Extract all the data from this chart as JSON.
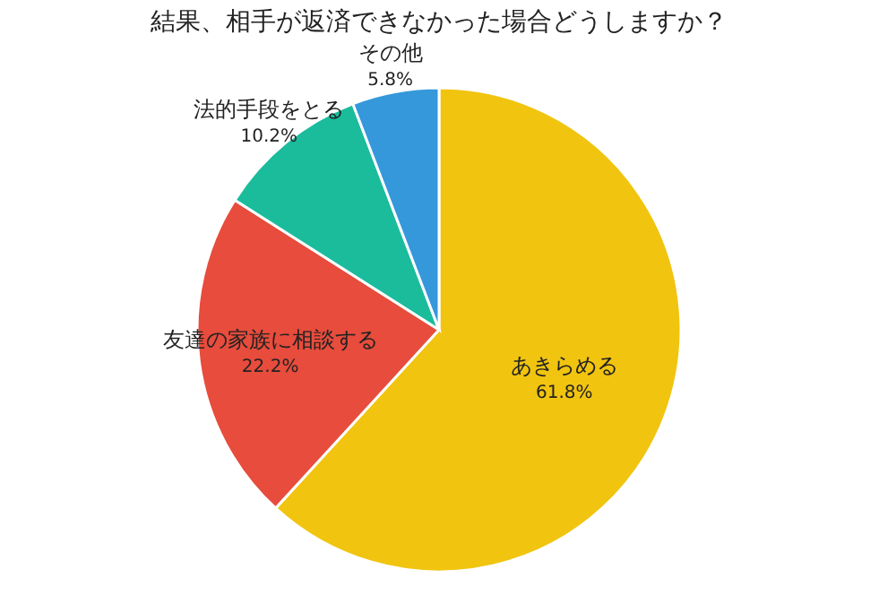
{
  "chart_data": {
    "type": "pie",
    "title": "結果、相手が返済できなかった場合どうしますか？",
    "categories": [
      "あきらめる",
      "友達の家族に相談する",
      "法的手段をとる",
      "その他"
    ],
    "values": [
      61.8,
      22.2,
      10.2,
      5.8
    ],
    "colors": [
      "#f1c40f",
      "#e74c3c",
      "#1abc9c",
      "#3498db"
    ],
    "value_labels": [
      "61.8%",
      "22.2%",
      "10.2%",
      "5.8%"
    ],
    "legend": false
  }
}
